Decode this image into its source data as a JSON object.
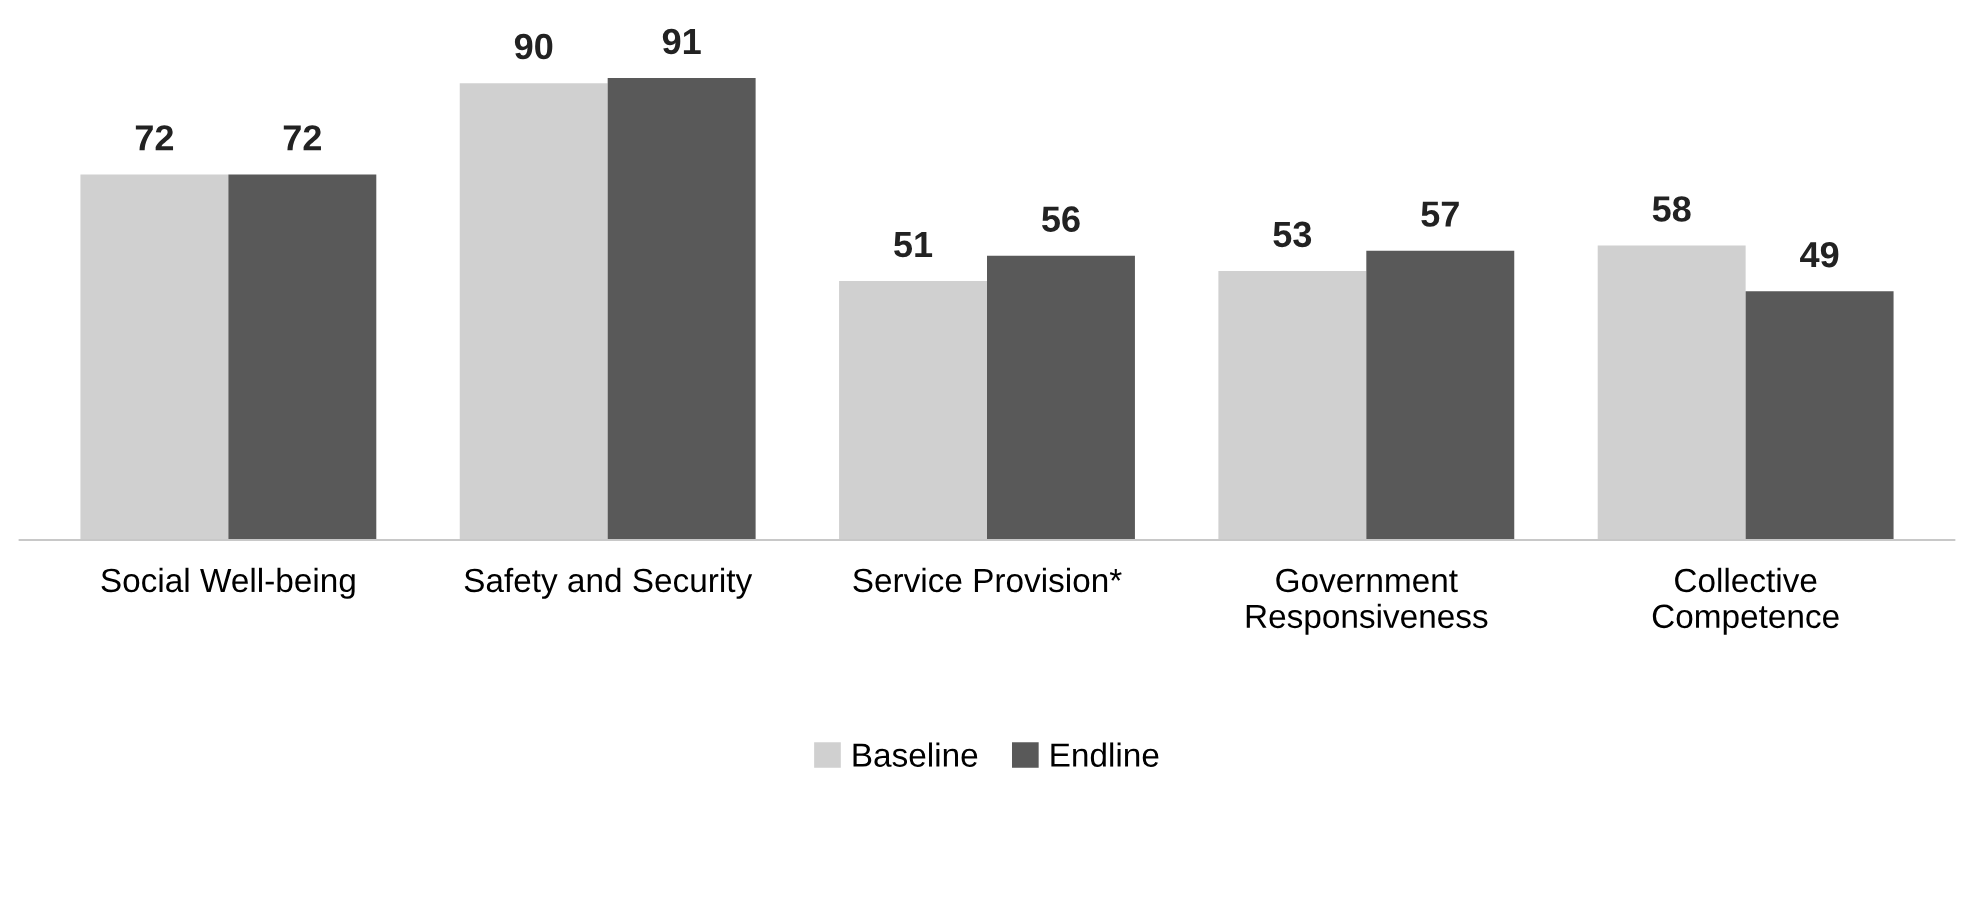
{
  "chart_data": {
    "type": "bar",
    "categories": [
      "Social Well-being",
      "Safety and Security",
      "Service Provision*",
      "Government\nResponsiveness",
      "Collective\nCompetence"
    ],
    "series": [
      {
        "name": "Baseline",
        "color": "#d0d0d0",
        "values": [
          72,
          90,
          51,
          53,
          58
        ]
      },
      {
        "name": "Endline",
        "color": "#595959",
        "values": [
          72,
          91,
          56,
          57,
          49
        ]
      }
    ],
    "data_labels": true,
    "legend": "bottom",
    "grid": false
  }
}
